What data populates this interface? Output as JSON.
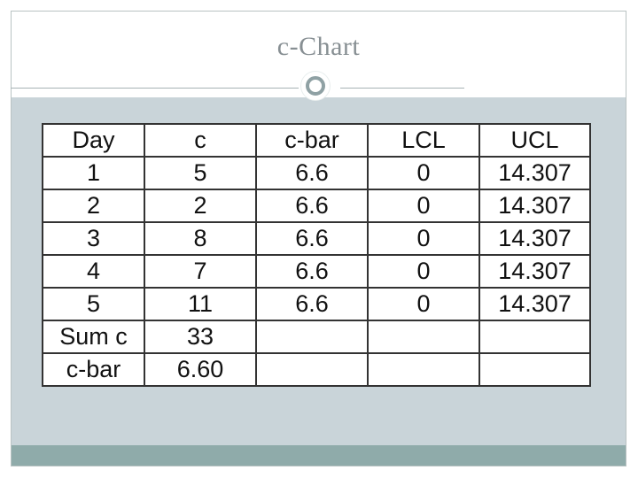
{
  "slide": {
    "title": "c-Chart"
  },
  "table": {
    "headers": [
      "Day",
      "c",
      "c-bar",
      "LCL",
      "UCL"
    ],
    "rows": [
      [
        "1",
        "5",
        "6.6",
        "0",
        "14.307"
      ],
      [
        "2",
        "2",
        "6.6",
        "0",
        "14.307"
      ],
      [
        "3",
        "8",
        "6.6",
        "0",
        "14.307"
      ],
      [
        "4",
        "7",
        "6.6",
        "0",
        "14.307"
      ],
      [
        "5",
        "11",
        "6.6",
        "0",
        "14.307"
      ],
      [
        "Sum c",
        "33",
        "",
        "",
        ""
      ],
      [
        "c-bar",
        "6.60",
        "",
        "",
        ""
      ]
    ]
  },
  "colors": {
    "content_background": "#c9d4d9",
    "bottom_bar": "#8fabaa",
    "title_text": "#878f93",
    "ring": "#8fa1a4"
  }
}
